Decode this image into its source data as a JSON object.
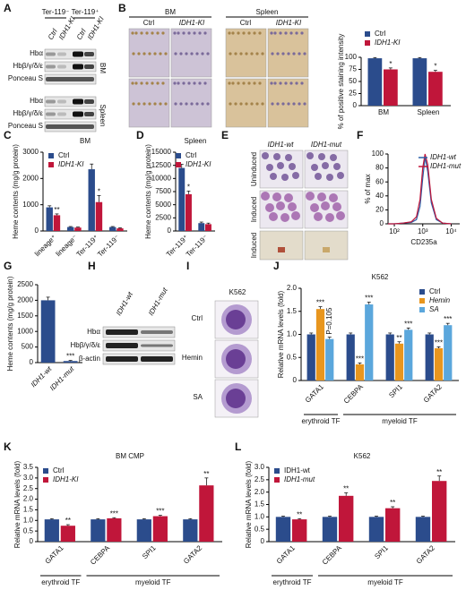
{
  "panel_labels": [
    "A",
    "B",
    "C",
    "D",
    "E",
    "F",
    "G",
    "H",
    "I",
    "J",
    "K",
    "L"
  ],
  "blot_a": {
    "groups": [
      "Ter-119⁻",
      "Ter-119⁺"
    ],
    "lanes": [
      "Ctrl",
      "IDH1-KI",
      "Ctrl",
      "IDH1-KI"
    ],
    "rows_bm": [
      "Hbα",
      "Hbβ/γ/δ/ε",
      "Ponceau S"
    ],
    "tissue_bm": "BM",
    "rows_spleen": [
      "Hbα",
      "Hbβ/γ/δ/ε",
      "Ponceau S"
    ],
    "tissue_spleen": "Spleen"
  },
  "histo_b": {
    "groups": [
      "BM",
      "Spleen"
    ],
    "lanes": [
      "Ctrl",
      "IDH1-KI",
      "Ctrl",
      "IDH1-KI"
    ]
  },
  "micro_e": {
    "columns": [
      "IDH1-wt",
      "IDH1-mut"
    ],
    "rows": [
      "Uninduced",
      "Induced",
      "Induced"
    ]
  },
  "blot_h": {
    "lanes": [
      "IDH1-wt",
      "IDH1-mut"
    ],
    "rows": [
      "Hbα",
      "Hbβ/γ/δ/ε",
      "β-actin"
    ]
  },
  "micro_i": {
    "title": "K562",
    "rows": [
      "Ctrl",
      "Hemin",
      "SA"
    ]
  },
  "chart_data": [
    {
      "type": "bar",
      "categories": [
        "BM",
        "Spleen"
      ],
      "series": [
        {
          "name": "Ctrl",
          "color": "#2b4c8c",
          "values": [
            98,
            98
          ],
          "errors": [
            1.5,
            1.5
          ],
          "annotations": [
            null,
            null
          ]
        },
        {
          "name": "IDH1-KI",
          "color": "#c0163a",
          "values": [
            75,
            70
          ],
          "errors": [
            3,
            3
          ],
          "annotations": [
            "*",
            "*"
          ]
        }
      ],
      "ylim": [
        0,
        100
      ],
      "yticks": [
        0,
        25,
        50,
        75,
        100
      ],
      "ylabel": "% of positive staining intensity",
      "legend": "top"
    },
    {
      "type": "bar",
      "title": "BM",
      "categories": [
        "lineage⁺",
        "lineage⁻",
        "Ter-119⁺",
        "Ter-119⁻"
      ],
      "series": [
        {
          "name": "Ctrl",
          "color": "#2b4c8c",
          "values": [
            900,
            150,
            2350,
            150
          ],
          "errors": [
            60,
            20,
            200,
            20
          ],
          "annotations": [
            null,
            null,
            null,
            null
          ]
        },
        {
          "name": "IDH1-KI",
          "color": "#c0163a",
          "values": [
            600,
            130,
            1100,
            100
          ],
          "errors": [
            50,
            20,
            250,
            20
          ],
          "annotations": [
            "**",
            null,
            "*",
            null
          ]
        }
      ],
      "ylim": [
        0,
        3000
      ],
      "yticks": [
        0,
        1000,
        2000,
        3000
      ],
      "ylabel": "Heme contents (mg/g protein)",
      "legend": "upper left"
    },
    {
      "type": "bar",
      "title": "Spleen",
      "categories": [
        "Ter-119⁺",
        "Ter-119⁻"
      ],
      "series": [
        {
          "name": "Ctrl",
          "color": "#2b4c8c",
          "values": [
            12000,
            1500
          ],
          "errors": [
            700,
            200
          ],
          "annotations": [
            null,
            null
          ]
        },
        {
          "name": "IDH1-KI",
          "color": "#c0163a",
          "values": [
            7000,
            1300
          ],
          "errors": [
            600,
            200
          ],
          "annotations": [
            "*",
            null
          ]
        }
      ],
      "ylim": [
        0,
        15000
      ],
      "yticks": [
        0,
        2500,
        5000,
        7500,
        10000,
        12500,
        15000
      ],
      "ylabel": "Heme contents (mg/g protein)",
      "legend": "upper right"
    },
    {
      "type": "line",
      "x": [
        60,
        100,
        200,
        400,
        600,
        800,
        1000,
        1200,
        1500,
        2000,
        3000,
        5000,
        10000
      ],
      "series": [
        {
          "name": "IDH1-wt",
          "color": "#2b5fa8",
          "values": [
            0,
            0,
            1,
            2,
            6,
            25,
            65,
            95,
            75,
            30,
            6,
            1,
            0
          ]
        },
        {
          "name": "IDH1-mut",
          "color": "#c0163a",
          "values": [
            0,
            0,
            1,
            3,
            10,
            35,
            80,
            100,
            85,
            35,
            8,
            1,
            0
          ]
        }
      ],
      "xscale": "log",
      "xlim": [
        60,
        20000
      ],
      "xticks": [
        {
          "value": 100,
          "label": "10²"
        },
        {
          "value": 1000,
          "label": "10³"
        },
        {
          "value": 10000,
          "label": "10⁴"
        }
      ],
      "ylim": [
        0,
        100
      ],
      "yticks": [
        0,
        20,
        40,
        60,
        80,
        100
      ],
      "ylabel": "% of max",
      "xlabel": "CD235a",
      "legend": "upper right"
    },
    {
      "type": "bar",
      "categories": [
        "IDH1-wt",
        "IDH1-mut"
      ],
      "color": "#2b4c8c",
      "values": [
        2000,
        50
      ],
      "errors": [
        100,
        20
      ],
      "annotations": [
        null,
        "***"
      ],
      "ylim": [
        0,
        2500
      ],
      "yticks": [
        0,
        500,
        1000,
        1500,
        2000,
        2500
      ],
      "ylabel": "Heme contents (mg/g protein)"
    },
    {
      "type": "bar",
      "title": "K562",
      "groups": [
        {
          "label": "erythroid TF",
          "categories": [
            "GATA1"
          ]
        },
        {
          "label": "myeloid TF",
          "categories": [
            "CEBPA",
            "SPI1",
            "GATA2"
          ]
        }
      ],
      "series": [
        {
          "name": "Ctrl",
          "color": "#2b4c8c",
          "values": [
            1,
            1,
            1,
            1
          ],
          "errors": [
            0.03,
            0.03,
            0.03,
            0.03
          ],
          "annotations": [
            null,
            null,
            null,
            null
          ]
        },
        {
          "name": "Hemin",
          "color": "#e8961e",
          "values": [
            1.55,
            0.35,
            0.8,
            0.7
          ],
          "errors": [
            0.05,
            0.03,
            0.04,
            0.03
          ],
          "annotations": [
            "***",
            "***",
            "**",
            "***"
          ]
        },
        {
          "name": "SA",
          "color": "#5ba7dc",
          "values": [
            0.9,
            1.65,
            1.1,
            1.2
          ],
          "errors": [
            0.04,
            0.05,
            0.04,
            0.04
          ],
          "annotations": [
            "P=0.105",
            "***",
            "***",
            "***"
          ]
        }
      ],
      "ylim": [
        0,
        2
      ],
      "yticks": [
        0,
        0.5,
        {
          "value": 1,
          "label": "1.0"
        },
        1.5,
        {
          "value": 2,
          "label": "2.0"
        }
      ],
      "ylabel": "Relative mRNA levels (fold)",
      "legend": "upper right"
    },
    {
      "type": "bar",
      "title": "BM CMP",
      "groups": [
        {
          "label": "erythroid TF",
          "categories": [
            "GATA1"
          ]
        },
        {
          "label": "myeloid TF",
          "categories": [
            "CEBPA",
            "SPI1",
            "GATA2"
          ]
        }
      ],
      "series": [
        {
          "name": "Ctrl",
          "color": "#2b4c8c",
          "values": [
            1.05,
            1.05,
            1.05,
            1.05
          ],
          "errors": [
            0.03,
            0.03,
            0.03,
            0.03
          ],
          "annotations": [
            null,
            null,
            null,
            null
          ]
        },
        {
          "name": "IDH1-KI",
          "color": "#c0163a",
          "values": [
            0.75,
            1.1,
            1.2,
            2.65
          ],
          "errors": [
            0.05,
            0.03,
            0.04,
            0.35
          ],
          "annotations": [
            "**",
            "***",
            "***",
            "**"
          ]
        }
      ],
      "ylim": [
        0,
        3.5
      ],
      "yticks": [
        0,
        0.5,
        {
          "value": 1,
          "label": "1.0"
        },
        1.5,
        {
          "value": 2,
          "label": "2.0"
        },
        2.5,
        {
          "value": 3,
          "label": "3.0"
        },
        3.5
      ],
      "ylabel": "Relative mRNA levels (fold)",
      "legend": "upper left"
    },
    {
      "type": "bar",
      "title": "K562",
      "groups": [
        {
          "label": "erythroid TF",
          "categories": [
            "GATA1"
          ]
        },
        {
          "label": "myeloid TF",
          "categories": [
            "CEBPA",
            "SPI1",
            "GATA2"
          ]
        }
      ],
      "series": [
        {
          "name": "IDH1-wt",
          "color": "#2b4c8c",
          "values": [
            1,
            1,
            1,
            1
          ],
          "errors": [
            0.03,
            0.03,
            0.03,
            0.03
          ],
          "annotations": [
            null,
            null,
            null,
            null
          ]
        },
        {
          "name": "IDH1-mut",
          "color": "#c0163a",
          "values": [
            0.9,
            1.85,
            1.35,
            2.45
          ],
          "errors": [
            0.03,
            0.12,
            0.06,
            0.2
          ],
          "annotations": [
            "**",
            "**",
            "**",
            "**"
          ]
        }
      ],
      "ylim": [
        0,
        3
      ],
      "yticks": [
        0,
        0.5,
        {
          "value": 1,
          "label": "1.0"
        },
        1.5,
        {
          "value": 2,
          "label": "2.0"
        },
        2.5,
        {
          "value": 3,
          "label": "3.0"
        }
      ],
      "ylabel": "Relative mRNA levels (fold)",
      "legend": "upper left"
    }
  ]
}
